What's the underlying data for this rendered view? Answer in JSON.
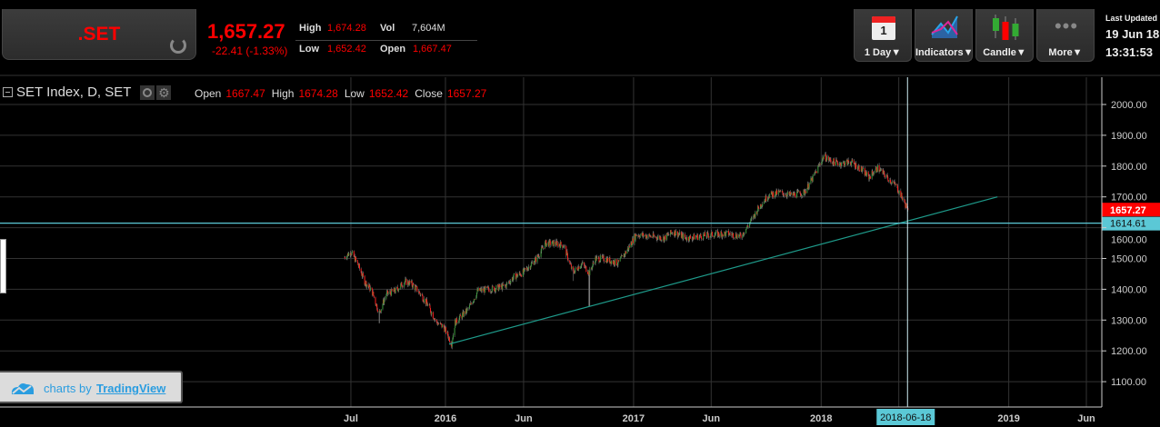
{
  "header": {
    "symbol": ".SET",
    "last": "1,657.27",
    "change": "-22.41 (-1.33%)",
    "high_label": "High",
    "high": "1,674.28",
    "low_label": "Low",
    "low": "1,652.42",
    "vol_label": "Vol",
    "vol": "7,604M",
    "open_label": "Open",
    "open": "1,667.47"
  },
  "toolbar": {
    "interval_day": "1",
    "interval": "1 Day▼",
    "indicators": "Indicators▼",
    "chart_type": "Candle▼",
    "more": "More▼"
  },
  "last_updated": {
    "label": "Last Updated",
    "date": "19 Jun 18",
    "time": "13:31:53"
  },
  "legend": {
    "title": "SET Index, D, SET",
    "open_label": "Open",
    "open": "1667.47",
    "high_label": "High",
    "high": "1674.28",
    "low_label": "Low",
    "low": "1652.42",
    "close_label": "Close",
    "close": "1657.27"
  },
  "badge": {
    "prefix": "charts by",
    "brand": "TradingView"
  },
  "colors": {
    "up": "#3a9a3a",
    "down": "#ff1a1a",
    "trendline": "#1e9a8a",
    "hline": "#5bc8d6",
    "last_price_bg": "#ff0000"
  },
  "chart_data": {
    "type": "candlestick",
    "title": "SET Index, D, SET",
    "ylim": [
      1050,
      2080
    ],
    "yticks": [
      1100,
      1200,
      1300,
      1400,
      1500,
      1600,
      1700,
      1800,
      1900,
      2000
    ],
    "ytick_labels": [
      "1100.00",
      "1200.00",
      "1300.00",
      "1400.00",
      "1500.00",
      "1600.00",
      "1700.00",
      "1800.00",
      "1900.00",
      "2000.00"
    ],
    "xticks": [
      {
        "date": "2015-07-01",
        "label": "Jul"
      },
      {
        "date": "2016-01-01",
        "label": "2016"
      },
      {
        "date": "2016-06-01",
        "label": "Jun"
      },
      {
        "date": "2017-01-01",
        "label": "2017"
      },
      {
        "date": "2017-06-01",
        "label": "Jun"
      },
      {
        "date": "2018-01-01",
        "label": "2018"
      },
      {
        "date": "2018-06-01",
        "label": ""
      },
      {
        "date": "2019-01-01",
        "label": "2019"
      },
      {
        "date": "2019-06-01",
        "label": "Jun"
      }
    ],
    "closes_approx": [
      [
        "2015-06-18",
        1504
      ],
      [
        "2015-06-30",
        1522
      ],
      [
        "2015-07-13",
        1484
      ],
      [
        "2015-07-27",
        1425
      ],
      [
        "2015-08-10",
        1395
      ],
      [
        "2015-08-24",
        1322
      ],
      [
        "2015-09-07",
        1384
      ],
      [
        "2015-09-25",
        1395
      ],
      [
        "2015-10-13",
        1425
      ],
      [
        "2015-10-25",
        1419
      ],
      [
        "2015-11-08",
        1395
      ],
      [
        "2015-11-26",
        1351
      ],
      [
        "2015-12-14",
        1292
      ],
      [
        "2015-12-28",
        1277
      ],
      [
        "2016-01-12",
        1224
      ],
      [
        "2016-01-19",
        1292
      ],
      [
        "2016-02-14",
        1336
      ],
      [
        "2016-03-03",
        1395
      ],
      [
        "2016-03-29",
        1401
      ],
      [
        "2016-04-25",
        1410
      ],
      [
        "2016-05-12",
        1440
      ],
      [
        "2016-05-30",
        1454
      ],
      [
        "2016-06-25",
        1499
      ],
      [
        "2016-07-13",
        1549
      ],
      [
        "2016-07-31",
        1549
      ],
      [
        "2016-08-17",
        1543
      ],
      [
        "2016-09-04",
        1454
      ],
      [
        "2016-09-21",
        1484
      ],
      [
        "2016-10-06",
        1454
      ],
      [
        "2016-10-18",
        1499
      ],
      [
        "2016-11-05",
        1499
      ],
      [
        "2016-12-01",
        1484
      ],
      [
        "2016-12-19",
        1528
      ],
      [
        "2017-01-05",
        1578
      ],
      [
        "2017-02-02",
        1572
      ],
      [
        "2017-02-28",
        1566
      ],
      [
        "2017-03-18",
        1587
      ],
      [
        "2017-04-13",
        1566
      ],
      [
        "2017-05-10",
        1572
      ],
      [
        "2017-06-05",
        1578
      ],
      [
        "2017-07-02",
        1581
      ],
      [
        "2017-07-28",
        1572
      ],
      [
        "2017-08-15",
        1617
      ],
      [
        "2017-09-01",
        1667
      ],
      [
        "2017-09-19",
        1705
      ],
      [
        "2017-10-12",
        1714
      ],
      [
        "2017-11-02",
        1705
      ],
      [
        "2017-11-28",
        1714
      ],
      [
        "2017-12-16",
        1764
      ],
      [
        "2018-01-05",
        1832
      ],
      [
        "2018-01-22",
        1814
      ],
      [
        "2018-02-09",
        1808
      ],
      [
        "2018-02-26",
        1814
      ],
      [
        "2018-03-16",
        1794
      ],
      [
        "2018-04-03",
        1764
      ],
      [
        "2018-04-20",
        1794
      ],
      [
        "2018-05-08",
        1764
      ],
      [
        "2018-05-26",
        1735
      ],
      [
        "2018-06-07",
        1696
      ],
      [
        "2018-06-18",
        1657.27
      ]
    ],
    "spikes": [
      {
        "date": "2015-08-24",
        "low": 1290
      },
      {
        "date": "2016-09-04",
        "low": 1427
      },
      {
        "date": "2016-10-06",
        "low": 1345
      }
    ],
    "trendline": {
      "from": [
        "2016-01-08",
        1222
      ],
      "to": [
        "2018-12-10",
        1700
      ]
    },
    "horizontal_line": {
      "value": 1614.61,
      "label": "1614.61"
    },
    "last_price": {
      "value": 1657.27,
      "label": "1657.27"
    },
    "crosshair": {
      "date": "2018-06-18",
      "label": "2018-06-18"
    }
  }
}
